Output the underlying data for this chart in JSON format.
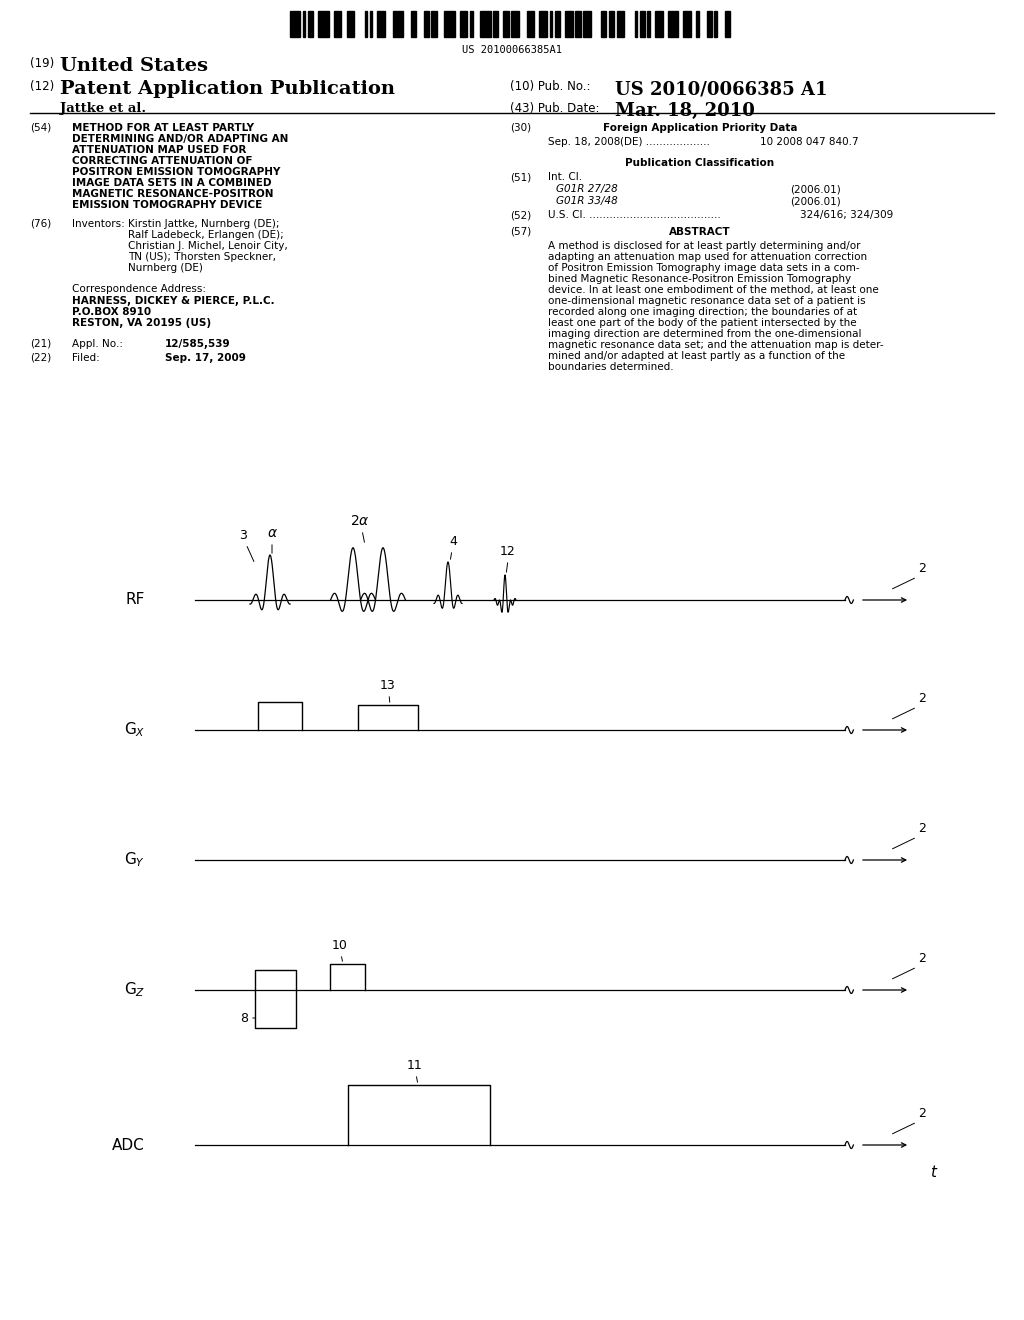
{
  "bg_color": "#ffffff",
  "barcode_text": "US 20100066385A1",
  "header": {
    "country_num": "(19)",
    "country": "United States",
    "type_num": "(12)",
    "type": "Patent Application Publication",
    "pub_num_label": "(10) Pub. No.: ",
    "pub_num": "US 2010/0066385 A1",
    "inventors": "Jattke et al.",
    "date_label": "(43) Pub. Date:",
    "date": "Mar. 18, 2010"
  },
  "field54_lines": [
    "METHOD FOR AT LEAST PARTLY",
    "DETERMINING AND/OR ADAPTING AN",
    "ATTENUATION MAP USED FOR",
    "CORRECTING ATTENUATION OF",
    "POSITRON EMISSION TOMOGRAPHY",
    "IMAGE DATA SETS IN A COMBINED",
    "MAGNETIC RESONANCE-POSITRON",
    "EMISSION TOMOGRAPHY DEVICE"
  ],
  "field76_lines": [
    "Kirstin Jattke, Nurnberg (DE);",
    "Ralf Ladebeck, Erlangen (DE);",
    "Christian J. Michel, Lenoir City,",
    "TN (US); Thorsten Speckner,",
    "Nurnberg (DE)"
  ],
  "corr_lines": [
    "HARNESS, DICKEY & PIERCE, P.L.C.",
    "P.O.BOX 8910",
    "RESTON, VA 20195 (US)"
  ],
  "field21_label": "Appl. No.:",
  "field21_value": "12/585,539",
  "field22_label": "Filed:",
  "field22_value": "Sep. 17, 2009",
  "field30_label": "Foreign Application Priority Data",
  "field30_entry1": "Sep. 18, 2008",
  "field30_entry2": "(DE) ...................",
  "field30_entry3": "10 2008 047 840.7",
  "pub_class_label": "Publication Classification",
  "field51_label": "Int. Cl.",
  "field51_code1": "G01R 27/28",
  "field51_year1": "(2006.01)",
  "field51_code2": "G01R 33/48",
  "field51_year2": "(2006.01)",
  "field52_label": "U.S. Cl. .......................................",
  "field52_value": "324/616; 324/309",
  "field57_label": "ABSTRACT",
  "abstract_lines": [
    "A method is disclosed for at least partly determining and/or",
    "adapting an attenuation map used for attenuation correction",
    "of Positron Emission Tomography image data sets in a com-",
    "bined Magnetic Resonance-Positron Emission Tomography",
    "device. In at least one embodiment of the method, at least one",
    "one-dimensional magnetic resonance data set of a patient is",
    "recorded along one imaging direction; the boundaries of at",
    "least one part of the body of the patient intersected by the",
    "imaging direction are determined from the one-dimensional",
    "magnetic resonance data set; and the attenuation map is deter-",
    "mined and/or adapted at least partly as a function of the",
    "boundaries determined."
  ]
}
